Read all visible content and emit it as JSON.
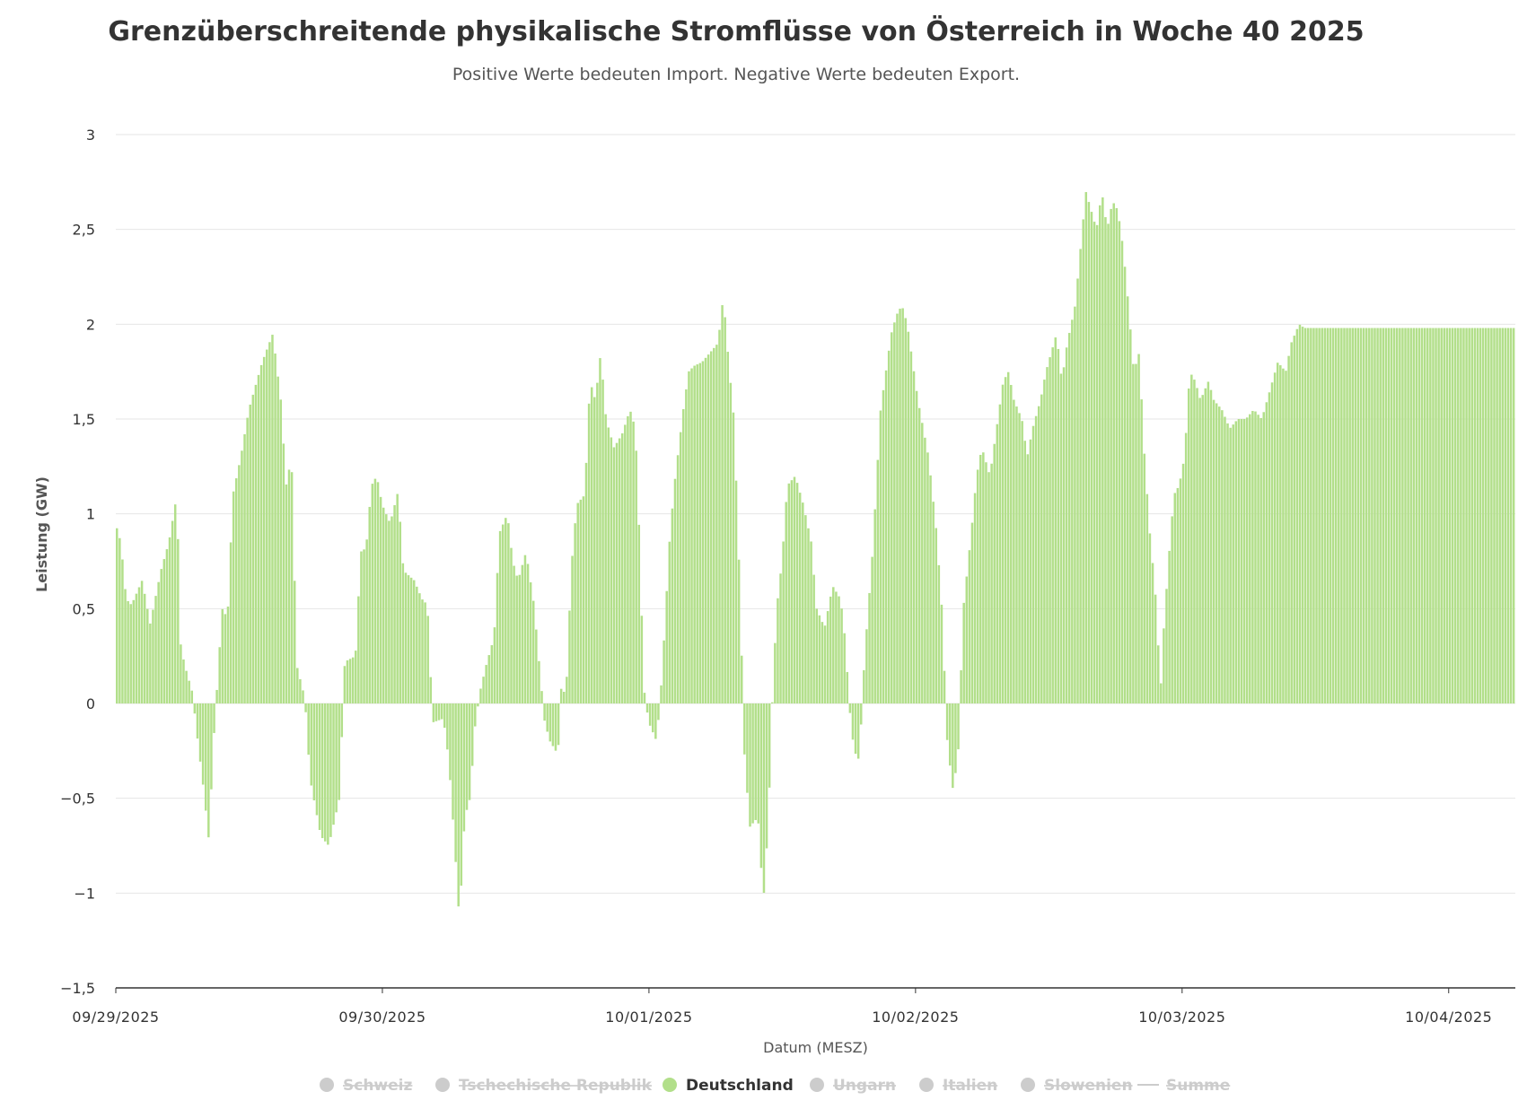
{
  "chart_data": {
    "type": "bar",
    "title": "Grenzüberschreitende physikalische Stromflüsse von Österreich in Woche 40 2025",
    "subtitle": "Positive Werte bedeuten Import. Negative Werte bedeuten Export.",
    "ylabel": "Leistung (GW)",
    "xlabel": "Datum (MESZ)",
    "ylim": [
      -1.5,
      3
    ],
    "yticks": [
      3,
      2.5,
      2,
      1.5,
      1,
      0.5,
      0,
      -0.5,
      -1,
      -1.5
    ],
    "ytick_labels": [
      "3",
      "2,5",
      "2",
      "1,5",
      "1",
      "0,5",
      "0",
      "−0,5",
      "−1",
      "−1,5"
    ],
    "x_tick_labels": [
      "09/29/2025",
      "09/30/2025",
      "10/01/2025",
      "10/02/2025",
      "10/03/2025",
      "10/04/2025"
    ],
    "days": 5.25,
    "intervals_per_day": 96,
    "grid": true,
    "legend_position": "bottom",
    "legend": [
      {
        "name": "Schweiz",
        "active": false,
        "symbol": "dot"
      },
      {
        "name": "Tschechische Republik",
        "active": false,
        "symbol": "dot"
      },
      {
        "name": "Deutschland",
        "active": true,
        "symbol": "dot",
        "color": "#b2df8a"
      },
      {
        "name": "Ungarn",
        "active": false,
        "symbol": "dot"
      },
      {
        "name": "Italien",
        "active": false,
        "symbol": "dot"
      },
      {
        "name": "Slowenien",
        "active": false,
        "symbol": "dot"
      },
      {
        "name": "Summe",
        "active": false,
        "symbol": "line"
      }
    ],
    "series": [
      {
        "name": "Deutschland",
        "color": "#b2df8a",
        "keypoints": [
          [
            0.0,
            0.95
          ],
          [
            0.02,
            0.85
          ],
          [
            0.04,
            0.55
          ],
          [
            0.06,
            0.52
          ],
          [
            0.1,
            0.65
          ],
          [
            0.13,
            0.42
          ],
          [
            0.17,
            0.7
          ],
          [
            0.2,
            0.85
          ],
          [
            0.23,
            1.1
          ],
          [
            0.245,
            0.3
          ],
          [
            0.26,
            0.2
          ],
          [
            0.29,
            0.05
          ],
          [
            0.3,
            -0.1
          ],
          [
            0.33,
            -0.45
          ],
          [
            0.35,
            -0.72
          ],
          [
            0.37,
            -0.15
          ],
          [
            0.4,
            0.5
          ],
          [
            0.42,
            0.45
          ],
          [
            0.44,
            1.1
          ],
          [
            0.47,
            1.3
          ],
          [
            0.5,
            1.55
          ],
          [
            0.55,
            1.8
          ],
          [
            0.59,
            1.95
          ],
          [
            0.62,
            1.6
          ],
          [
            0.64,
            1.15
          ],
          [
            0.66,
            1.3
          ],
          [
            0.68,
            0.2
          ],
          [
            0.71,
            0.03
          ],
          [
            0.73,
            -0.4
          ],
          [
            0.77,
            -0.7
          ],
          [
            0.8,
            -0.75
          ],
          [
            0.84,
            -0.5
          ],
          [
            0.86,
            0.22
          ],
          [
            0.9,
            0.25
          ],
          [
            0.92,
            0.8
          ],
          [
            0.94,
            0.82
          ],
          [
            0.96,
            1.15
          ],
          [
            0.98,
            1.2
          ],
          [
            1.0,
            1.05
          ],
          [
            1.03,
            0.95
          ],
          [
            1.06,
            1.12
          ],
          [
            1.08,
            0.7
          ],
          [
            1.12,
            0.65
          ],
          [
            1.15,
            0.55
          ],
          [
            1.17,
            0.52
          ],
          [
            1.19,
            -0.1
          ],
          [
            1.23,
            -0.08
          ],
          [
            1.25,
            -0.3
          ],
          [
            1.27,
            -0.7
          ],
          [
            1.29,
            -1.15
          ],
          [
            1.31,
            -0.6
          ],
          [
            1.33,
            -0.5
          ],
          [
            1.35,
            -0.1
          ],
          [
            1.37,
            0.08
          ],
          [
            1.39,
            0.2
          ],
          [
            1.42,
            0.35
          ],
          [
            1.44,
            0.9
          ],
          [
            1.47,
            1.0
          ],
          [
            1.49,
            0.75
          ],
          [
            1.51,
            0.65
          ],
          [
            1.54,
            0.8
          ],
          [
            1.57,
            0.52
          ],
          [
            1.59,
            0.2
          ],
          [
            1.61,
            -0.1
          ],
          [
            1.63,
            -0.2
          ],
          [
            1.66,
            -0.27
          ],
          [
            1.67,
            0.08
          ],
          [
            1.69,
            0.05
          ],
          [
            1.71,
            0.72
          ],
          [
            1.73,
            1.05
          ],
          [
            1.76,
            1.1
          ],
          [
            1.78,
            1.7
          ],
          [
            1.8,
            1.6
          ],
          [
            1.82,
            1.85
          ],
          [
            1.84,
            1.5
          ],
          [
            1.87,
            1.35
          ],
          [
            1.9,
            1.42
          ],
          [
            1.93,
            1.55
          ],
          [
            1.95,
            1.45
          ],
          [
            1.97,
            0.7
          ],
          [
            1.98,
            0.1
          ],
          [
            2.0,
            -0.1
          ],
          [
            2.03,
            -0.2
          ],
          [
            2.05,
            0.15
          ],
          [
            2.08,
            0.9
          ],
          [
            2.1,
            1.2
          ],
          [
            2.13,
            1.55
          ],
          [
            2.15,
            1.75
          ],
          [
            2.17,
            1.78
          ],
          [
            2.2,
            1.8
          ],
          [
            2.23,
            1.85
          ],
          [
            2.26,
            1.9
          ],
          [
            2.28,
            2.15
          ],
          [
            2.3,
            1.8
          ],
          [
            2.32,
            1.5
          ],
          [
            2.34,
            0.7
          ],
          [
            2.36,
            -0.3
          ],
          [
            2.38,
            -0.65
          ],
          [
            2.41,
            -0.6
          ],
          [
            2.43,
            -1.05
          ],
          [
            2.45,
            -0.6
          ],
          [
            2.46,
            -0.1
          ],
          [
            2.48,
            0.5
          ],
          [
            2.5,
            0.75
          ],
          [
            2.52,
            1.15
          ],
          [
            2.55,
            1.2
          ],
          [
            2.58,
            1.05
          ],
          [
            2.61,
            0.85
          ],
          [
            2.63,
            0.5
          ],
          [
            2.66,
            0.4
          ],
          [
            2.69,
            0.62
          ],
          [
            2.72,
            0.55
          ],
          [
            2.74,
            0.3
          ],
          [
            2.75,
            0.02
          ],
          [
            2.77,
            -0.25
          ],
          [
            2.79,
            -0.3
          ],
          [
            2.81,
            0.25
          ],
          [
            2.84,
            0.8
          ],
          [
            2.87,
            1.55
          ],
          [
            2.89,
            1.75
          ],
          [
            2.91,
            1.95
          ],
          [
            2.93,
            2.05
          ],
          [
            2.95,
            2.1
          ],
          [
            2.97,
            2.0
          ],
          [
            2.99,
            1.8
          ],
          [
            3.01,
            1.6
          ],
          [
            3.03,
            1.45
          ],
          [
            3.05,
            1.3
          ],
          [
            3.08,
            0.9
          ],
          [
            3.1,
            0.5
          ],
          [
            3.12,
            -0.2
          ],
          [
            3.14,
            -0.45
          ],
          [
            3.16,
            -0.3
          ],
          [
            3.18,
            0.5
          ],
          [
            3.21,
            0.9
          ],
          [
            3.23,
            1.2
          ],
          [
            3.25,
            1.35
          ],
          [
            3.28,
            1.2
          ],
          [
            3.31,
            1.5
          ],
          [
            3.33,
            1.7
          ],
          [
            3.35,
            1.75
          ],
          [
            3.37,
            1.6
          ],
          [
            3.4,
            1.5
          ],
          [
            3.42,
            1.3
          ],
          [
            3.44,
            1.45
          ],
          [
            3.47,
            1.6
          ],
          [
            3.49,
            1.75
          ],
          [
            3.51,
            1.85
          ],
          [
            3.53,
            1.95
          ],
          [
            3.55,
            1.7
          ],
          [
            3.57,
            1.9
          ],
          [
            3.6,
            2.1
          ],
          [
            3.62,
            2.4
          ],
          [
            3.64,
            2.7
          ],
          [
            3.66,
            2.6
          ],
          [
            3.68,
            2.5
          ],
          [
            3.7,
            2.7
          ],
          [
            3.72,
            2.5
          ],
          [
            3.74,
            2.65
          ],
          [
            3.76,
            2.6
          ],
          [
            3.78,
            2.4
          ],
          [
            3.8,
            2.1
          ],
          [
            3.82,
            1.75
          ],
          [
            3.84,
            1.85
          ],
          [
            3.86,
            1.3
          ],
          [
            3.88,
            0.9
          ],
          [
            3.9,
            0.6
          ],
          [
            3.91,
            0.35
          ],
          [
            3.92,
            0.05
          ],
          [
            3.93,
            0.35
          ],
          [
            3.95,
            0.75
          ],
          [
            3.97,
            1.1
          ],
          [
            3.99,
            1.15
          ],
          [
            4.01,
            1.3
          ],
          [
            4.03,
            1.75
          ],
          [
            4.05,
            1.7
          ],
          [
            4.07,
            1.6
          ],
          [
            4.1,
            1.7
          ],
          [
            4.12,
            1.6
          ],
          [
            4.15,
            1.55
          ],
          [
            4.18,
            1.45
          ],
          [
            4.21,
            1.5
          ],
          [
            4.24,
            1.5
          ],
          [
            4.27,
            1.55
          ],
          [
            4.3,
            1.5
          ],
          [
            4.33,
            1.65
          ],
          [
            4.36,
            1.8
          ],
          [
            4.39,
            1.75
          ],
          [
            4.41,
            1.9
          ],
          [
            4.44,
            2.0
          ],
          [
            4.46,
            1.98
          ]
        ]
      }
    ]
  }
}
